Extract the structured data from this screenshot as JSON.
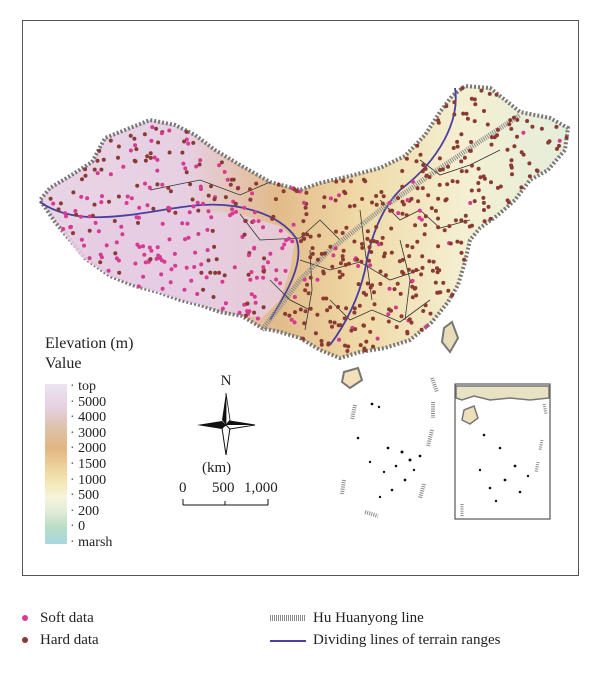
{
  "legend_elevation": {
    "title": "Elevation (m)",
    "subtitle": "Value",
    "labels": [
      "top",
      "5000",
      "4000",
      "3000",
      "2000",
      "1500",
      "1000",
      "500",
      "200",
      "0",
      "marsh"
    ]
  },
  "compass": {
    "north_label": "N"
  },
  "scale_bar": {
    "unit": "(km)",
    "ticks": [
      "0",
      "500",
      "1,000"
    ]
  },
  "legend_points": [
    {
      "label": "Soft data",
      "color": "#d63a93",
      "icon": "magenta-dot-icon"
    },
    {
      "label": "Hard data",
      "color": "#8b3a33",
      "icon": "brown-dot-icon"
    }
  ],
  "legend_lines": [
    {
      "label": "Hu Huanyong line",
      "color": "#8a8a8a",
      "icon": "hatched-line-icon"
    },
    {
      "label": "Dividing lines of terrain ranges",
      "color": "#4b3ea0",
      "icon": "purple-line-icon"
    }
  ]
}
